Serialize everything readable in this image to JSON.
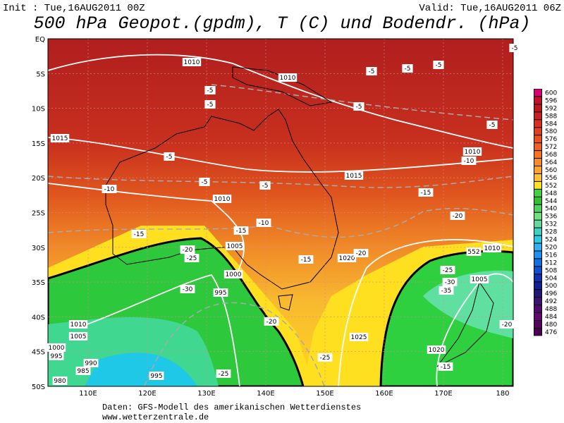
{
  "header": {
    "init": "Init : Tue,16AUG2011 00Z",
    "valid": "Valid: Tue,16AUG2011 06Z",
    "title": "500 hPa Geopot.(gpdm), T (C) und Bodendr. (hPa)"
  },
  "map": {
    "lat_labels": [
      "EQ",
      "5S",
      "10S",
      "15S",
      "20S",
      "25S",
      "30S",
      "35S",
      "40S",
      "45S",
      "50S"
    ],
    "lon_labels": [
      "110E",
      "120E",
      "130E",
      "140E",
      "150E",
      "160E",
      "170E",
      "180"
    ],
    "contour_labels": [
      "1010",
      "1010",
      "1015",
      "1010",
      "1015",
      "1010",
      "1005",
      "1000",
      "995",
      "1010",
      "1005",
      "1000",
      "995",
      "990",
      "985",
      "980",
      "995",
      "1020",
      "1025",
      "1020",
      "1005",
      "1010",
      "-5",
      "-5",
      "-5",
      "-5",
      "-5",
      "-5",
      "-5",
      "-5",
      "-5",
      "-5",
      "-5",
      "-10",
      "-10",
      "-10",
      "-15",
      "-15",
      "-15",
      "-15",
      "-15",
      "-20",
      "-20",
      "-20",
      "-20",
      "-20",
      "-25",
      "-25",
      "-25",
      "-25",
      "-30",
      "-30",
      "-35",
      "552"
    ]
  },
  "colorbar": {
    "labels": [
      600,
      596,
      592,
      588,
      584,
      580,
      576,
      572,
      568,
      564,
      560,
      556,
      552,
      548,
      544,
      540,
      536,
      532,
      528,
      524,
      520,
      516,
      512,
      508,
      504,
      500,
      496,
      492,
      488,
      484,
      480,
      476
    ]
  },
  "footer": {
    "source": "Daten: GFS-Modell des amerikanischen Wetterdienstes",
    "url": "www.wetterzentrale.de"
  }
}
